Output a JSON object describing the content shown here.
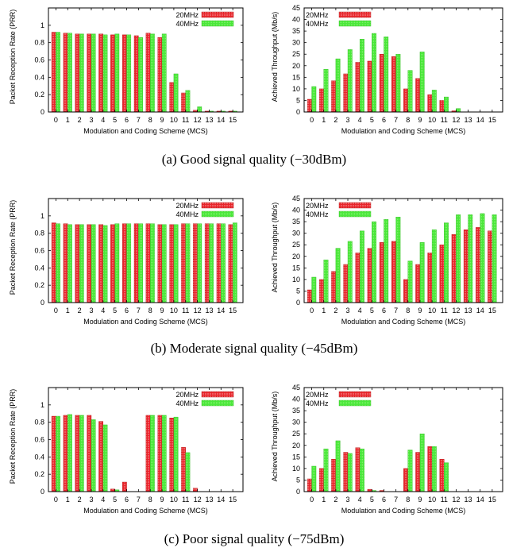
{
  "captions": [
    "(a)  Good signal quality (−30dBm)",
    "(b)  Moderate signal quality (−45dBm)",
    "(c)  Poor signal quality (−75dBm)"
  ],
  "colors": {
    "s20": "#e8252b",
    "s20_dot": "#ffffff",
    "s40": "#4ae83a"
  },
  "chart_data": [
    {
      "type": "bar",
      "panel": "a-left",
      "categories": [
        "0",
        "1",
        "2",
        "3",
        "4",
        "5",
        "6",
        "7",
        "8",
        "9",
        "10",
        "11",
        "12",
        "13",
        "14",
        "15"
      ],
      "xlabel": "Modulation and Coding Scheme (MCS)",
      "ylabel": "Packet Reception Rate (PRR)",
      "ylim": [
        0,
        1.2
      ],
      "yticks": [
        0,
        0.2,
        0.4,
        0.6,
        0.8,
        1
      ],
      "ytick_labels": [
        "0",
        "0.2",
        "0.4",
        "0.6",
        "0.8",
        "1"
      ],
      "legend": "top-right",
      "series": [
        {
          "name": "20MHz",
          "values": [
            0.92,
            0.91,
            0.9,
            0.9,
            0.9,
            0.89,
            0.89,
            0.88,
            0.91,
            0.86,
            0.34,
            0.22,
            0.02,
            0.01,
            0.01,
            0.01
          ]
        },
        {
          "name": "40MHz",
          "values": [
            0.92,
            0.91,
            0.9,
            0.9,
            0.89,
            0.9,
            0.89,
            0.86,
            0.9,
            0.9,
            0.44,
            0.25,
            0.06,
            0.01,
            0.01,
            0.01
          ]
        }
      ]
    },
    {
      "type": "bar",
      "panel": "a-right",
      "categories": [
        "0",
        "1",
        "2",
        "3",
        "4",
        "5",
        "6",
        "7",
        "8",
        "9",
        "10",
        "11",
        "12",
        "13",
        "14",
        "15"
      ],
      "xlabel": "Modulation and Coding Scheme (MCS)",
      "ylabel": "Achieved Throughput (Mb/s)",
      "ylim": [
        0,
        45
      ],
      "yticks": [
        0,
        5,
        10,
        15,
        20,
        25,
        30,
        35,
        40,
        45
      ],
      "ytick_labels": [
        "0",
        "5",
        "10",
        "15",
        "20",
        "25",
        "30",
        "35",
        "40",
        "45"
      ],
      "legend": "top-left",
      "series": [
        {
          "name": "20MHz",
          "values": [
            5.5,
            10,
            13.5,
            16.5,
            21.5,
            22,
            25,
            24,
            10,
            14.5,
            7.5,
            5,
            0.5,
            0,
            0,
            0
          ]
        },
        {
          "name": "40MHz",
          "values": [
            11,
            18.5,
            23,
            27,
            31.5,
            34,
            32.5,
            25,
            18,
            26,
            9.5,
            6.5,
            1.5,
            0,
            0,
            0
          ]
        }
      ]
    },
    {
      "type": "bar",
      "panel": "b-left",
      "categories": [
        "0",
        "1",
        "2",
        "3",
        "4",
        "5",
        "6",
        "7",
        "8",
        "9",
        "10",
        "11",
        "12",
        "13",
        "14",
        "15"
      ],
      "xlabel": "Modulation and Coding Scheme (MCS)",
      "ylabel": "Packet Reception Rate (PRR)",
      "ylim": [
        0,
        1.2
      ],
      "yticks": [
        0,
        0.2,
        0.4,
        0.6,
        0.8,
        1
      ],
      "ytick_labels": [
        "0",
        "0.2",
        "0.4",
        "0.6",
        "0.8",
        "1"
      ],
      "legend": "top-right",
      "series": [
        {
          "name": "20MHz",
          "values": [
            0.92,
            0.91,
            0.9,
            0.9,
            0.9,
            0.9,
            0.91,
            0.91,
            0.91,
            0.9,
            0.9,
            0.91,
            0.91,
            0.91,
            0.91,
            0.9
          ]
        },
        {
          "name": "40MHz",
          "values": [
            0.91,
            0.9,
            0.9,
            0.9,
            0.89,
            0.91,
            0.91,
            0.91,
            0.91,
            0.9,
            0.9,
            0.91,
            0.91,
            0.91,
            0.91,
            0.92
          ]
        }
      ]
    },
    {
      "type": "bar",
      "panel": "b-right",
      "categories": [
        "0",
        "1",
        "2",
        "3",
        "4",
        "5",
        "6",
        "7",
        "8",
        "9",
        "10",
        "11",
        "12",
        "13",
        "14",
        "15"
      ],
      "xlabel": "Modulation and Coding Scheme (MCS)",
      "ylabel": "Achieved Throughput (Mb/s)",
      "ylim": [
        0,
        45
      ],
      "yticks": [
        0,
        5,
        10,
        15,
        20,
        25,
        30,
        35,
        40,
        45
      ],
      "ytick_labels": [
        "0",
        "5",
        "10",
        "15",
        "20",
        "25",
        "30",
        "35",
        "40",
        "45"
      ],
      "legend": "top-left",
      "series": [
        {
          "name": "20MHz",
          "values": [
            5.5,
            10,
            13.5,
            16.5,
            21.5,
            23.5,
            26,
            26.5,
            10,
            16.5,
            21.5,
            25,
            29.5,
            31.5,
            32.5,
            31
          ]
        },
        {
          "name": "40MHz",
          "values": [
            11,
            18.5,
            23.5,
            26.5,
            31,
            35,
            36,
            37,
            18,
            26,
            31.5,
            34.5,
            38,
            38,
            38.5,
            38
          ]
        }
      ]
    },
    {
      "type": "bar",
      "panel": "c-left",
      "categories": [
        "0",
        "1",
        "2",
        "3",
        "4",
        "5",
        "6",
        "7",
        "8",
        "9",
        "10",
        "11",
        "12",
        "13",
        "14",
        "15"
      ],
      "xlabel": "Modulation and Coding Scheme (MCS)",
      "ylabel": "Packet Reception Rate (PRR)",
      "ylim": [
        0,
        1.2
      ],
      "yticks": [
        0,
        0.2,
        0.4,
        0.6,
        0.8,
        1
      ],
      "ytick_labels": [
        "0",
        "0.2",
        "0.4",
        "0.6",
        "0.8",
        "1"
      ],
      "legend": "top-right",
      "series": [
        {
          "name": "20MHz",
          "values": [
            0.87,
            0.88,
            0.88,
            0.88,
            0.81,
            0.03,
            0.11,
            0,
            0.88,
            0.88,
            0.85,
            0.51,
            0.04,
            0,
            0,
            0
          ]
        },
        {
          "name": "40MHz",
          "values": [
            0.87,
            0.89,
            0.88,
            0.83,
            0.77,
            0.02,
            0,
            0,
            0.88,
            0.88,
            0.86,
            0.45,
            0,
            0,
            0,
            0
          ]
        }
      ]
    },
    {
      "type": "bar",
      "panel": "c-right",
      "categories": [
        "0",
        "1",
        "2",
        "3",
        "4",
        "5",
        "6",
        "7",
        "8",
        "9",
        "10",
        "11",
        "12",
        "13",
        "14",
        "15"
      ],
      "xlabel": "Modulation and Coding Scheme (MCS)",
      "ylabel": "Achieved Throughput (Mb/s)",
      "ylim": [
        0,
        45
      ],
      "yticks": [
        0,
        5,
        10,
        15,
        20,
        25,
        30,
        35,
        40,
        45
      ],
      "ytick_labels": [
        "0",
        "5",
        "10",
        "15",
        "20",
        "25",
        "30",
        "35",
        "40",
        "45"
      ],
      "legend": "top-left",
      "series": [
        {
          "name": "20MHz",
          "values": [
            5.5,
            10,
            14,
            17,
            19,
            1,
            0.5,
            0,
            10,
            17,
            19.5,
            14,
            0,
            0,
            0,
            0
          ]
        },
        {
          "name": "40MHz",
          "values": [
            11,
            18.5,
            22,
            16.5,
            18.5,
            0.5,
            0,
            0,
            18,
            25,
            19.5,
            12.5,
            0,
            0,
            0,
            0
          ]
        }
      ]
    }
  ]
}
